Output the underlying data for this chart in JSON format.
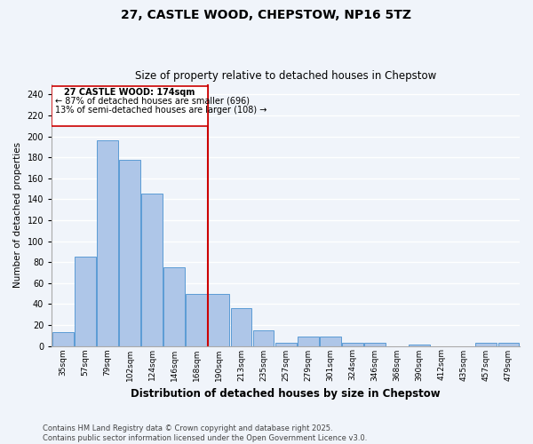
{
  "title": "27, CASTLE WOOD, CHEPSTOW, NP16 5TZ",
  "subtitle": "Size of property relative to detached houses in Chepstow",
  "xlabel": "Distribution of detached houses by size in Chepstow",
  "ylabel": "Number of detached properties",
  "bar_values": [
    13,
    85,
    196,
    178,
    145,
    75,
    50,
    50,
    36,
    15,
    3,
    9,
    9,
    3,
    3,
    0,
    1,
    0,
    0,
    3,
    3
  ],
  "bin_labels": [
    "35sqm",
    "57sqm",
    "79sqm",
    "102sqm",
    "124sqm",
    "146sqm",
    "168sqm",
    "190sqm",
    "213sqm",
    "235sqm",
    "257sqm",
    "279sqm",
    "301sqm",
    "324sqm",
    "346sqm",
    "368sqm",
    "390sqm",
    "412sqm",
    "435sqm",
    "457sqm",
    "479sqm"
  ],
  "bar_color": "#aec6e8",
  "bar_edge_color": "#5b9bd5",
  "vline_x": 6,
  "vline_color": "#cc0000",
  "annotation_title": "27 CASTLE WOOD: 174sqm",
  "annotation_line1": "← 87% of detached houses are smaller (696)",
  "annotation_line2": "13% of semi-detached houses are larger (108) →",
  "annotation_box_color": "#cc0000",
  "annotation_bg": "#ffffff",
  "ylim": [
    0,
    250
  ],
  "yticks": [
    0,
    20,
    40,
    60,
    80,
    100,
    120,
    140,
    160,
    180,
    200,
    220,
    240
  ],
  "footer": "Contains HM Land Registry data © Crown copyright and database right 2025.\nContains public sector information licensed under the Open Government Licence v3.0.",
  "bg_color": "#f0f4fa",
  "grid_color": "#ffffff"
}
